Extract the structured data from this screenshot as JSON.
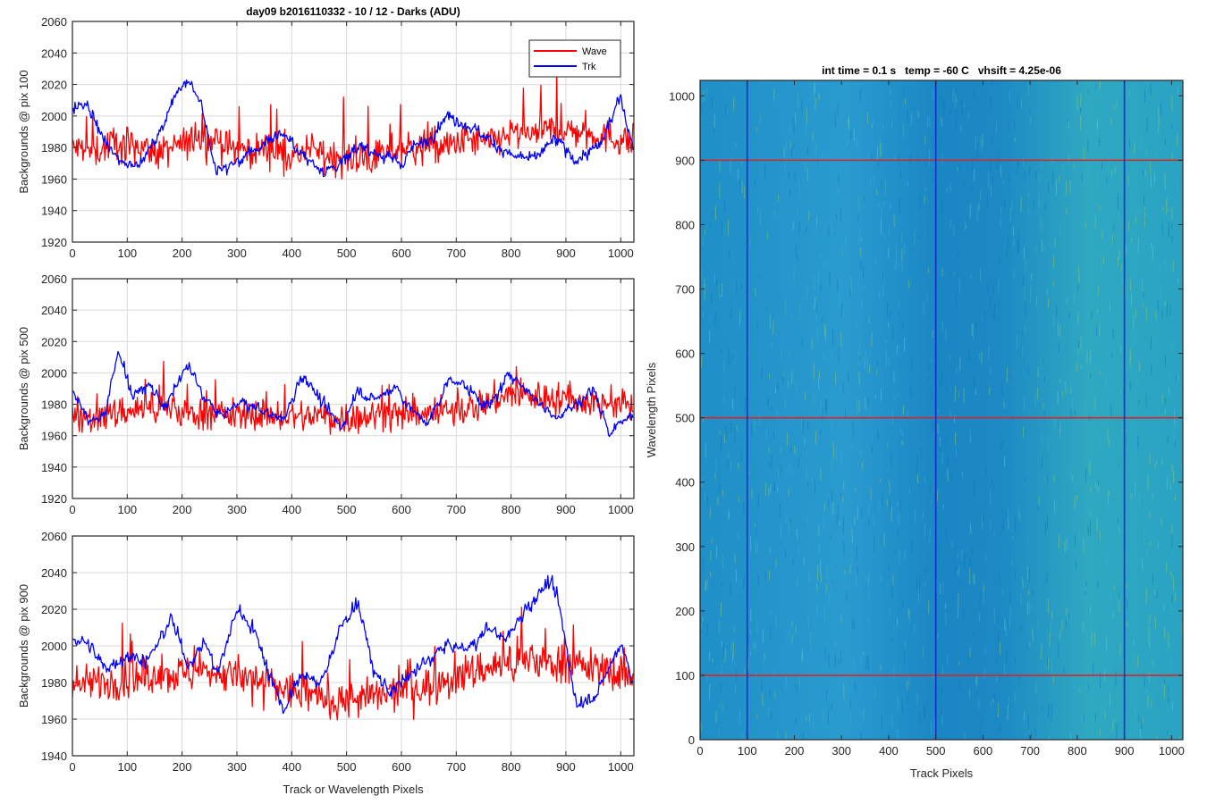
{
  "figure_title": "day09 b2016110332 - 10 / 12 - Darks (ADU)",
  "colors": {
    "wave": "#ff0000",
    "trk": "#0000ff",
    "grid": "#d9d9d9",
    "axis": "#262626",
    "marker_row": "#d62728",
    "marker_col": "#1030c8"
  },
  "chart_data": [
    {
      "type": "line",
      "id": "top",
      "title": "day09 b2016110332 - 10 / 12 - Darks (ADU)",
      "xlabel": "",
      "ylabel": "Backgrounds @ pix 100",
      "xlim": [
        0,
        1024
      ],
      "ylim": [
        1920,
        2060
      ],
      "xticks": [
        0,
        100,
        200,
        300,
        400,
        500,
        600,
        700,
        800,
        900,
        1000
      ],
      "yticks": [
        1920,
        1940,
        1960,
        1980,
        2000,
        2020,
        2040,
        2060
      ],
      "grid": true,
      "legend": {
        "position": "top-right",
        "entries": [
          "Wave",
          "Trk"
        ]
      },
      "series": [
        {
          "name": "Wave",
          "color": "#ff0000",
          "x": [
            0,
            40,
            80,
            120,
            160,
            200,
            240,
            280,
            320,
            360,
            400,
            440,
            480,
            520,
            560,
            600,
            640,
            680,
            720,
            760,
            800,
            840,
            880,
            920,
            960,
            1000,
            1024
          ],
          "values": [
            1980,
            1977,
            1984,
            1981,
            1976,
            1982,
            1986,
            1981,
            1978,
            1980,
            1975,
            1978,
            1974,
            1972,
            1975,
            1979,
            1982,
            1980,
            1985,
            1983,
            1989,
            1987,
            1992,
            1990,
            1988,
            1985,
            1984
          ]
        },
        {
          "name": "Trk",
          "color": "#0000ff",
          "x": [
            0,
            25,
            50,
            75,
            100,
            130,
            160,
            190,
            210,
            235,
            260,
            300,
            340,
            380,
            420,
            460,
            490,
            530,
            560,
            600,
            620,
            650,
            680,
            720,
            760,
            800,
            840,
            880,
            920,
            960,
            1000,
            1024
          ],
          "values": [
            2004,
            2008,
            1990,
            1975,
            1970,
            1972,
            1990,
            2015,
            2025,
            2008,
            1965,
            1970,
            1980,
            1990,
            1975,
            1965,
            1970,
            1982,
            1975,
            1970,
            1980,
            1985,
            2000,
            1995,
            1985,
            1975,
            1972,
            1985,
            1972,
            1980,
            2012,
            1978
          ]
        }
      ]
    },
    {
      "type": "line",
      "id": "mid",
      "title": "",
      "xlabel": "",
      "ylabel": "Backgrounds @ pix 500",
      "xlim": [
        0,
        1024
      ],
      "ylim": [
        1920,
        2060
      ],
      "xticks": [
        0,
        100,
        200,
        300,
        400,
        500,
        600,
        700,
        800,
        900,
        1000
      ],
      "yticks": [
        1920,
        1940,
        1960,
        1980,
        2000,
        2020,
        2040,
        2060
      ],
      "grid": true,
      "series": [
        {
          "name": "Wave",
          "color": "#ff0000",
          "x": [
            0,
            50,
            100,
            150,
            200,
            250,
            300,
            350,
            400,
            450,
            500,
            550,
            600,
            650,
            700,
            750,
            800,
            850,
            900,
            950,
            1000,
            1024
          ],
          "values": [
            1975,
            1972,
            1976,
            1978,
            1975,
            1974,
            1973,
            1974,
            1972,
            1973,
            1971,
            1973,
            1972,
            1974,
            1976,
            1980,
            1987,
            1985,
            1983,
            1981,
            1980,
            1978
          ]
        },
        {
          "name": "Trk",
          "color": "#0000ff",
          "x": [
            0,
            30,
            60,
            85,
            110,
            140,
            170,
            210,
            240,
            270,
            310,
            350,
            385,
            420,
            460,
            490,
            520,
            550,
            590,
            620,
            650,
            690,
            720,
            760,
            800,
            840,
            880,
            920,
            950,
            980,
            1024
          ],
          "values": [
            1990,
            1968,
            1975,
            2015,
            1985,
            1992,
            1978,
            2005,
            1985,
            1972,
            1982,
            1975,
            1970,
            2000,
            1978,
            1965,
            1990,
            1982,
            1992,
            1975,
            1968,
            1998,
            1990,
            1978,
            2000,
            1985,
            1972,
            1980,
            1990,
            1962,
            1975
          ]
        }
      ]
    },
    {
      "type": "line",
      "id": "bot",
      "title": "",
      "xlabel": "Track or Wavelength Pixels",
      "ylabel": "Backgrounds @ pix 900",
      "xlim": [
        0,
        1024
      ],
      "ylim": [
        1940,
        2060
      ],
      "xticks": [
        0,
        100,
        200,
        300,
        400,
        500,
        600,
        700,
        800,
        900,
        1000
      ],
      "yticks": [
        1940,
        1960,
        1980,
        2000,
        2020,
        2040,
        2060
      ],
      "grid": true,
      "series": [
        {
          "name": "Wave",
          "color": "#ff0000",
          "x": [
            0,
            50,
            100,
            150,
            200,
            250,
            300,
            350,
            400,
            450,
            500,
            550,
            600,
            650,
            700,
            750,
            800,
            850,
            900,
            950,
            1000,
            1024
          ],
          "values": [
            1978,
            1980,
            1982,
            1983,
            1985,
            1986,
            1984,
            1980,
            1975,
            1972,
            1970,
            1972,
            1975,
            1978,
            1983,
            1988,
            1990,
            1992,
            1990,
            1988,
            1985,
            1984
          ]
        },
        {
          "name": "Trk",
          "color": "#0000ff",
          "x": [
            0,
            30,
            60,
            100,
            140,
            180,
            210,
            240,
            265,
            300,
            330,
            360,
            385,
            420,
            450,
            490,
            520,
            550,
            580,
            610,
            640,
            680,
            720,
            760,
            790,
            830,
            870,
            885,
            920,
            960,
            1000,
            1024
          ],
          "values": [
            2005,
            2000,
            1988,
            1995,
            1992,
            2015,
            1990,
            2002,
            1985,
            2020,
            2010,
            1985,
            1965,
            1985,
            1978,
            2010,
            2025,
            1985,
            1975,
            1982,
            1990,
            2000,
            1998,
            2010,
            2003,
            2022,
            2035,
            2025,
            1968,
            1975,
            2002,
            1980
          ]
        }
      ]
    },
    {
      "type": "heatmap",
      "id": "image",
      "title": "int time = 0.1 s   temp = -60 C   vhsift = 4.25e-06",
      "xlabel": "Track Pixels",
      "ylabel": "Wavelength Pixels",
      "xlim": [
        0,
        1024
      ],
      "ylim": [
        0,
        1024
      ],
      "xticks": [
        0,
        100,
        200,
        300,
        400,
        500,
        600,
        700,
        800,
        900,
        1000
      ],
      "yticks": [
        0,
        100,
        200,
        300,
        400,
        500,
        600,
        700,
        800,
        900,
        1000
      ],
      "marker_rows": [
        100,
        500,
        900
      ],
      "marker_cols": [
        100,
        500,
        900
      ],
      "colormap": "parula"
    }
  ]
}
